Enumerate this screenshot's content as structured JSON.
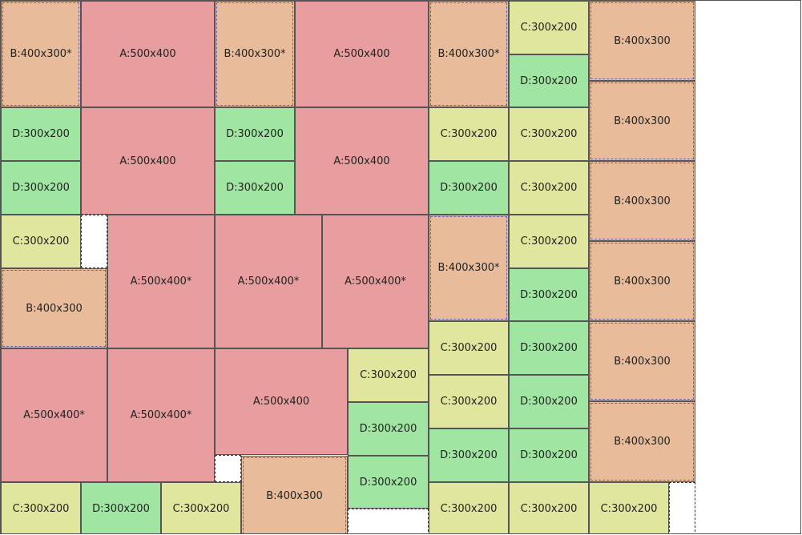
{
  "colors": {
    "A": "#e89e9e",
    "B": "#e8bc9a",
    "C": "#e0e69e",
    "D": "#a0e6a2"
  },
  "pieces": [
    {
      "t": "B",
      "label": "B:400x300*"
    },
    {
      "t": "A",
      "label": "A:500x400"
    },
    {
      "t": "B",
      "label": "B:400x300*"
    },
    {
      "t": "A",
      "label": "A:500x400"
    },
    {
      "t": "B",
      "label": "B:400x300*"
    },
    {
      "t": "C",
      "label": "C:300x200"
    },
    {
      "t": "D",
      "label": "D:300x200"
    },
    {
      "t": "B",
      "label": "B:400x300"
    },
    {
      "t": "D",
      "label": "D:300x200"
    },
    {
      "t": "D",
      "label": "D:300x200"
    },
    {
      "t": "A",
      "label": "A:500x400"
    },
    {
      "t": "D",
      "label": "D:300x200"
    },
    {
      "t": "D",
      "label": "D:300x200"
    },
    {
      "t": "A",
      "label": "A:500x400"
    },
    {
      "t": "C",
      "label": "C:300x200"
    },
    {
      "t": "D",
      "label": "D:300x200"
    },
    {
      "t": "C",
      "label": "C:300x200"
    },
    {
      "t": "C",
      "label": "C:300x200"
    },
    {
      "t": "B",
      "label": "B:400x300"
    },
    {
      "t": "B",
      "label": "B:400x300"
    },
    {
      "t": "C",
      "label": "C:300x200"
    },
    {
      "t": "B",
      "label": "B:400x300"
    },
    {
      "t": "A",
      "label": "A:500x400*"
    },
    {
      "t": "A",
      "label": "A:500x400*"
    },
    {
      "t": "A",
      "label": "A:500x400*"
    },
    {
      "t": "B",
      "label": "B:400x300*"
    },
    {
      "t": "C",
      "label": "C:300x200"
    },
    {
      "t": "D",
      "label": "D:300x200"
    },
    {
      "t": "B",
      "label": "B:400x300"
    },
    {
      "t": "A",
      "label": "A:500x400*"
    },
    {
      "t": "A",
      "label": "A:500x400*"
    },
    {
      "t": "A",
      "label": "A:500x400"
    },
    {
      "t": "C",
      "label": "C:300x200"
    },
    {
      "t": "D",
      "label": "D:300x200"
    },
    {
      "t": "C",
      "label": "C:300x200"
    },
    {
      "t": "B",
      "label": "B:400x300"
    },
    {
      "t": "D",
      "label": "D:300x200"
    },
    {
      "t": "C",
      "label": "C:300x200"
    },
    {
      "t": "D",
      "label": "D:300x200"
    },
    {
      "t": "D",
      "label": "D:300x200"
    },
    {
      "t": "D",
      "label": "D:300x200"
    },
    {
      "t": "D",
      "label": "D:300x200"
    },
    {
      "t": "B",
      "label": "B:400x300"
    },
    {
      "t": "C",
      "label": "C:300x200"
    },
    {
      "t": "D",
      "label": "D:300x200"
    },
    {
      "t": "C",
      "label": "C:300x200"
    },
    {
      "t": "B",
      "label": "B:400x300"
    },
    {
      "t": "C",
      "label": "C:300x200"
    },
    {
      "t": "C",
      "label": "C:300x200"
    },
    {
      "t": "C",
      "label": "C:300x200"
    }
  ]
}
